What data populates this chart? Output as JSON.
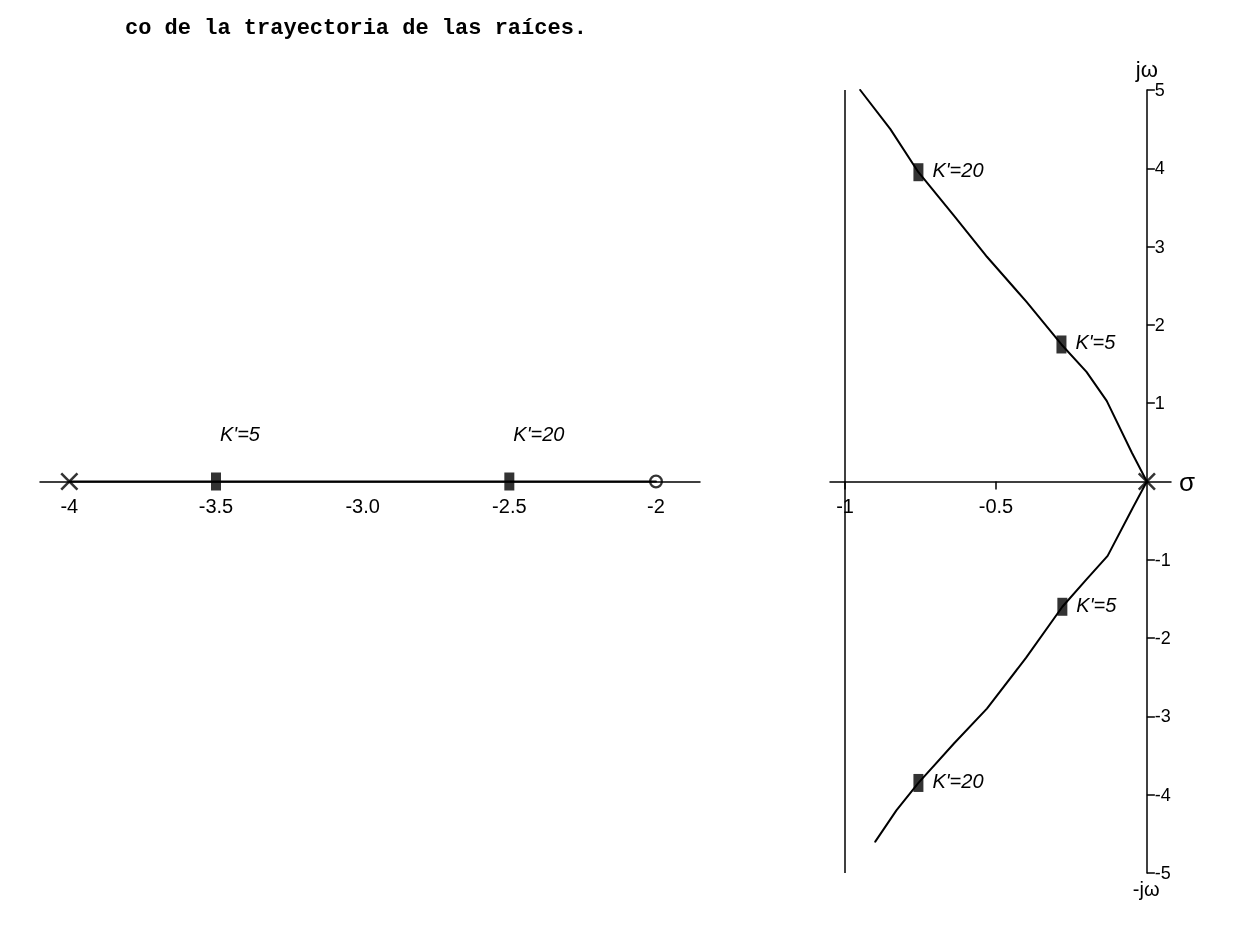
{
  "chart_data": [
    {
      "type": "line",
      "title": "co de la trayectoria de las raíces.",
      "xlim": [
        -4.1,
        -1.85
      ],
      "xticks": [
        -4,
        -3.5,
        {
          "value": -3,
          "label": "-3.0"
        },
        -2.5,
        -2
      ],
      "ylim": [
        -5,
        5
      ],
      "tick_labels": "x",
      "grid": false,
      "series": [
        {
          "color": "#000000",
          "marker": "none",
          "x": [
            -4,
            -2
          ],
          "values": [
            0,
            0
          ]
        },
        {
          "type": "scatter",
          "color": "#000000",
          "marker": "cross",
          "x": [
            -4
          ],
          "values": [
            0
          ]
        },
        {
          "type": "scatter",
          "color": "#000000",
          "marker": "circle",
          "x": [
            -2
          ],
          "values": [
            0
          ]
        },
        {
          "type": "scatter",
          "color": "#000000",
          "marker": "square",
          "x": [
            -3.5,
            -2.5
          ],
          "values": [
            0,
            0
          ]
        }
      ],
      "annotations": [
        {
          "text": "K'=5",
          "x": -3.5,
          "y": 0
        },
        {
          "text": "K'=20",
          "x": -2.5,
          "y": 0
        }
      ]
    },
    {
      "type": "line",
      "xlabel": "σ",
      "ylabel": "jω",
      "xlim": [
        -1.05,
        0.08
      ],
      "xticks": [
        -1,
        -0.5
      ],
      "ylim": [
        -5,
        5
      ],
      "yticks": [
        -5,
        -4,
        -3,
        -2,
        -1,
        1,
        2,
        3,
        4,
        5
      ],
      "grid": false,
      "ref_lines": [
        {
          "axis": "x",
          "value": -1,
          "color": "#000000"
        }
      ],
      "series": [
        {
          "color": "#000000",
          "marker": "none",
          "x": [
            -0.95,
            -0.85,
            -0.757,
            -0.64,
            -0.53,
            -0.4,
            -0.283,
            -0.2,
            -0.133,
            -0.05,
            0,
            -0.05,
            -0.13,
            -0.2,
            -0.28,
            -0.4,
            -0.53,
            -0.64,
            -0.757,
            -0.83,
            -0.9
          ],
          "values": [
            5.0,
            4.5,
            3.95,
            3.4,
            2.87,
            2.3,
            1.75,
            1.4,
            1.03,
            0.37,
            0,
            -0.36,
            -0.95,
            -1.25,
            -1.6,
            -2.25,
            -2.9,
            -3.35,
            -3.85,
            -4.2,
            -4.6
          ]
        },
        {
          "type": "scatter",
          "color": "#000000",
          "marker": "square",
          "x": [
            -0.757,
            -0.283,
            -0.28,
            -0.757
          ],
          "values": [
            3.95,
            1.75,
            -1.6,
            -3.85
          ]
        },
        {
          "type": "scatter",
          "color": "#000000",
          "marker": "cross",
          "x": [
            0
          ],
          "values": [
            0
          ]
        }
      ],
      "annotations": [
        {
          "text": "K'=20",
          "x": -0.757,
          "y": 3.95
        },
        {
          "text": "K'=5",
          "x": -0.283,
          "y": 1.75
        },
        {
          "text": "K'=5",
          "x": -0.28,
          "y": -1.6
        },
        {
          "text": "K'=20",
          "x": -0.757,
          "y": -3.85
        },
        "-jω"
      ]
    }
  ]
}
